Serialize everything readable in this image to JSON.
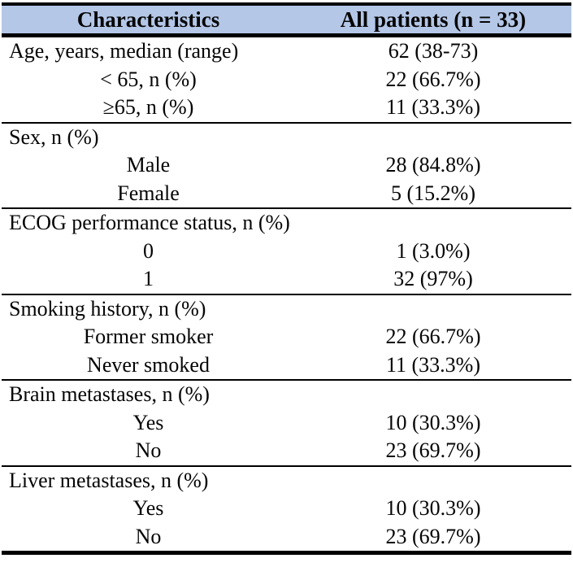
{
  "table": {
    "accent_color": "#b4c7e7",
    "line_color": "#000000",
    "header": {
      "col1": "Characteristics",
      "col2": "All patients (n = 33)"
    },
    "sections": [
      {
        "rows": [
          {
            "label": "Age, years, median (range)",
            "value": "62 (38-73)",
            "indent": false
          },
          {
            "label": "< 65, n (%)",
            "value": "22 (66.7%)",
            "indent": true
          },
          {
            "label": "≥65, n (%)",
            "value": "11 (33.3%)",
            "indent": true
          }
        ]
      },
      {
        "rows": [
          {
            "label": "Sex, n (%)",
            "value": "",
            "indent": false
          },
          {
            "label": "Male",
            "value": "28 (84.8%)",
            "indent": true
          },
          {
            "label": "Female",
            "value": "5 (15.2%)",
            "indent": true
          }
        ]
      },
      {
        "rows": [
          {
            "label": "ECOG performance status, n (%)",
            "value": "",
            "indent": false
          },
          {
            "label": "0",
            "value": "1 (3.0%)",
            "indent": true
          },
          {
            "label": "1",
            "value": "32 (97%)",
            "indent": true
          }
        ]
      },
      {
        "rows": [
          {
            "label": "Smoking history, n (%)",
            "value": "",
            "indent": false
          },
          {
            "label": "Former smoker",
            "value": "22 (66.7%)",
            "indent": true
          },
          {
            "label": "Never smoked",
            "value": "11 (33.3%)",
            "indent": true
          }
        ]
      },
      {
        "rows": [
          {
            "label": "Brain metastases, n (%)",
            "value": "",
            "indent": false
          },
          {
            "label": "Yes",
            "value": "10 (30.3%)",
            "indent": true
          },
          {
            "label": "No",
            "value": "23 (69.7%)",
            "indent": true
          }
        ]
      },
      {
        "rows": [
          {
            "label": "Liver metastases, n (%)",
            "value": "",
            "indent": false
          },
          {
            "label": "Yes",
            "value": "10 (30.3%)",
            "indent": true
          },
          {
            "label": "No",
            "value": "23 (69.7%)",
            "indent": true
          }
        ]
      }
    ]
  }
}
